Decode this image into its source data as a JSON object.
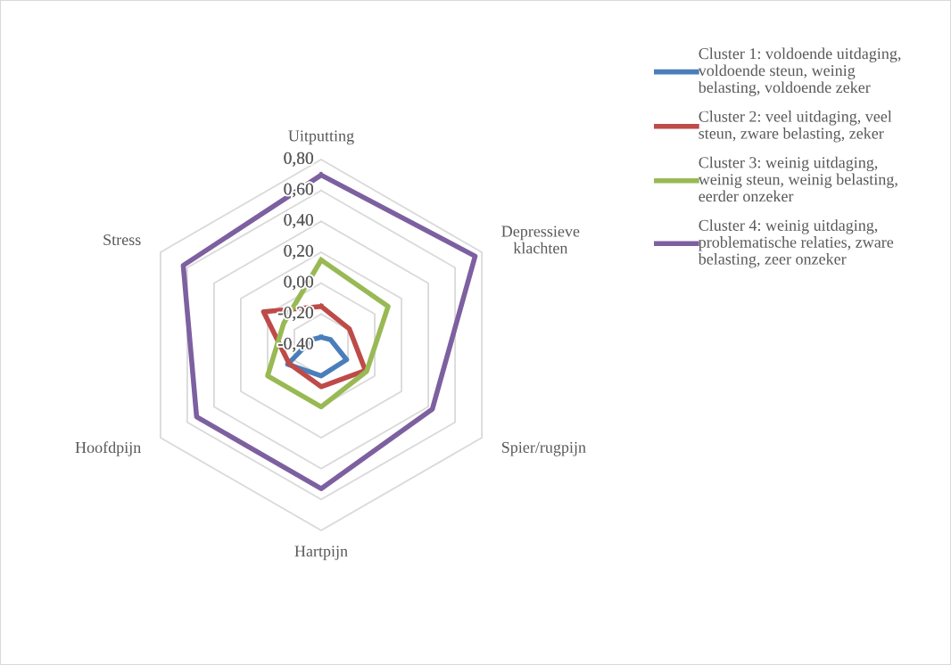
{
  "chart_data": {
    "type": "radar",
    "categories": [
      "Uitputting",
      "Depressieve\nklachten",
      "Spier/rugpijn",
      "Hartpijn",
      "Hoofdpijn",
      "Stress"
    ],
    "ylim": [
      -0.4,
      0.8
    ],
    "yticks": [
      {
        "value": -0.4,
        "label": "-0,40"
      },
      {
        "value": -0.2,
        "label": "-0,20"
      },
      {
        "value": 0.0,
        "label": "0,00"
      },
      {
        "value": 0.2,
        "label": "0,20"
      },
      {
        "value": 0.4,
        "label": "0,40"
      },
      {
        "value": 0.6,
        "label": "0,60"
      },
      {
        "value": 0.8,
        "label": "0,80"
      }
    ],
    "grid": true,
    "legend": "top right",
    "marker": "none",
    "series": [
      {
        "name": "Cluster 1: voldoende uitdaging,\nvoldoende steun, weinig\nbelasting, voldoende zeker",
        "color": "#4a7ebb",
        "values": [
          -0.35,
          -0.33,
          -0.21,
          -0.2,
          -0.15,
          -0.33
        ]
      },
      {
        "name": "Cluster 2: veel uitdaging, veel\nsteun, zware belasting, zeker",
        "color": "#be4b48",
        "values": [
          -0.15,
          -0.19,
          -0.07,
          -0.13,
          -0.16,
          0.03
        ]
      },
      {
        "name": "Cluster 3: weinig uitdaging,\nweinig steun, weinig belasting,\neerder onzeker",
        "color": "#98b954",
        "values": [
          0.15,
          0.1,
          -0.06,
          0.0,
          0.0,
          -0.12
        ]
      },
      {
        "name": "Cluster 4: weinig uitdaging,\nproblematische relaties, zware\nbelasting, zeer onzeker",
        "color": "#7d60a0",
        "values": [
          0.7,
          0.75,
          0.43,
          0.53,
          0.53,
          0.63
        ]
      }
    ]
  }
}
